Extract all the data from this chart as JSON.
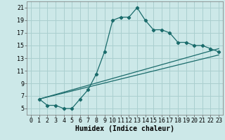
{
  "xlabel": "Humidex (Indice chaleur)",
  "bg_color": "#cce8e8",
  "grid_color": "#aacfcf",
  "line_color": "#1a6b6b",
  "xlim": [
    -0.5,
    23.5
  ],
  "ylim": [
    4,
    22
  ],
  "xticks": [
    0,
    1,
    2,
    3,
    4,
    5,
    6,
    7,
    8,
    9,
    10,
    11,
    12,
    13,
    14,
    15,
    16,
    17,
    18,
    19,
    20,
    21,
    22,
    23
  ],
  "yticks": [
    5,
    7,
    9,
    11,
    13,
    15,
    17,
    19,
    21
  ],
  "curve1_x": [
    1,
    2,
    3,
    4,
    5,
    6,
    7,
    8,
    9,
    10,
    11,
    12,
    13,
    14,
    15,
    16,
    17,
    18,
    19,
    20,
    21,
    22,
    23
  ],
  "curve1_y": [
    6.5,
    5.5,
    5.5,
    5.0,
    5.0,
    6.5,
    8.0,
    10.5,
    14.0,
    19.0,
    19.5,
    19.5,
    21.0,
    19.0,
    17.5,
    17.5,
    17.0,
    15.5,
    15.5,
    15.0,
    15.0,
    14.5,
    14.0
  ],
  "curve2_x": [
    1,
    23
  ],
  "curve2_y": [
    6.5,
    13.5
  ],
  "curve3_x": [
    1,
    23
  ],
  "curve3_y": [
    6.5,
    14.5
  ],
  "label_fontsize": 7,
  "tick_fontsize": 6
}
